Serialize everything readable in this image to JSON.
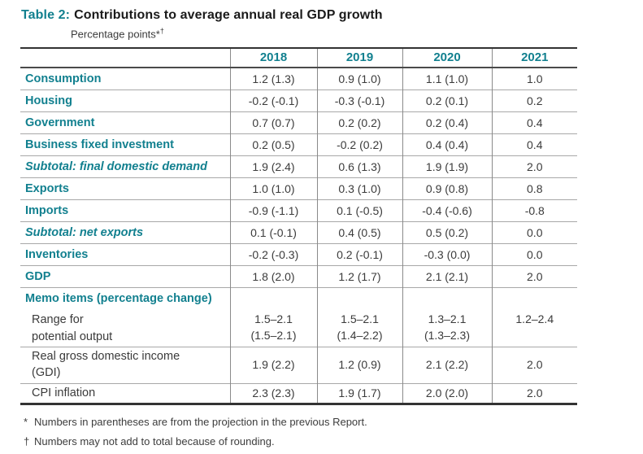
{
  "title": {
    "prefix": "Table 2:",
    "text": "Contributions to average annual real GDP growth"
  },
  "subtitle": {
    "text": "Percentage points*",
    "sup": "†"
  },
  "colors": {
    "accent_teal": "#12808f",
    "value_text": "#3b3b3b",
    "rule_dark": "#333333",
    "rule_gray": "#a8a8a8"
  },
  "columns": [
    "2018",
    "2019",
    "2020",
    "2021"
  ],
  "rows": [
    {
      "label": "Consumption",
      "values": [
        "1.2 (1.3)",
        "0.9 (1.0)",
        "1.1 (1.0)",
        "1.0"
      ]
    },
    {
      "label": "Housing",
      "values": [
        "-0.2 (-0.1)",
        "-0.3 (-0.1)",
        "0.2 (0.1)",
        "0.2"
      ]
    },
    {
      "label": "Government",
      "values": [
        "0.7 (0.7)",
        "0.2 (0.2)",
        "0.2 (0.4)",
        "0.4"
      ]
    },
    {
      "label": "Business fixed investment",
      "values": [
        "0.2 (0.5)",
        "-0.2 (0.2)",
        "0.4 (0.4)",
        "0.4"
      ]
    },
    {
      "label": "Subtotal: final domestic demand",
      "values": [
        "1.9 (2.4)",
        "0.6 (1.3)",
        "1.9 (1.9)",
        "2.0"
      ]
    },
    {
      "label": "Exports",
      "values": [
        "1.0 (1.0)",
        "0.3 (1.0)",
        "0.9 (0.8)",
        "0.8"
      ]
    },
    {
      "label": "Imports",
      "values": [
        "-0.9 (-1.1)",
        "0.1 (-0.5)",
        "-0.4 (-0.6)",
        "-0.8"
      ]
    },
    {
      "label": "Subtotal: net exports",
      "values": [
        "0.1 (-0.1)",
        "0.4 (0.5)",
        "0.5 (0.2)",
        "0.0"
      ]
    },
    {
      "label": "Inventories",
      "values": [
        "-0.2 (-0.3)",
        "0.2 (-0.1)",
        "-0.3 (0.0)",
        "0.0"
      ]
    },
    {
      "label": "GDP",
      "values": [
        "1.8 (2.0)",
        "1.2 (1.7)",
        "2.1 (2.1)",
        "2.0"
      ]
    }
  ],
  "memo": {
    "header": "Memo items (percentage change)",
    "rows": [
      {
        "label_lines": [
          "Range for",
          "potential output"
        ],
        "line1": [
          "1.5–2.1",
          "1.5–2.1",
          "1.3–2.1",
          "1.2–2.4"
        ],
        "line2": [
          "(1.5–2.1)",
          "(1.4–2.2)",
          "(1.3–2.3)",
          ""
        ]
      },
      {
        "label_lines": [
          "Real gross domestic income",
          "(GDI)"
        ],
        "values": [
          "1.9 (2.2)",
          "1.2 (0.9)",
          "2.1 (2.2)",
          "2.0"
        ]
      },
      {
        "label_lines": [
          "CPI inflation"
        ],
        "values": [
          "2.3 (2.3)",
          "1.9 (1.7)",
          "2.0 (2.0)",
          "2.0"
        ]
      }
    ]
  },
  "footnotes": [
    {
      "symbol": "*",
      "text": "Numbers in parentheses are from the projection in the previous Report."
    },
    {
      "symbol": "†",
      "text": "Numbers may not add to total because of rounding."
    }
  ]
}
